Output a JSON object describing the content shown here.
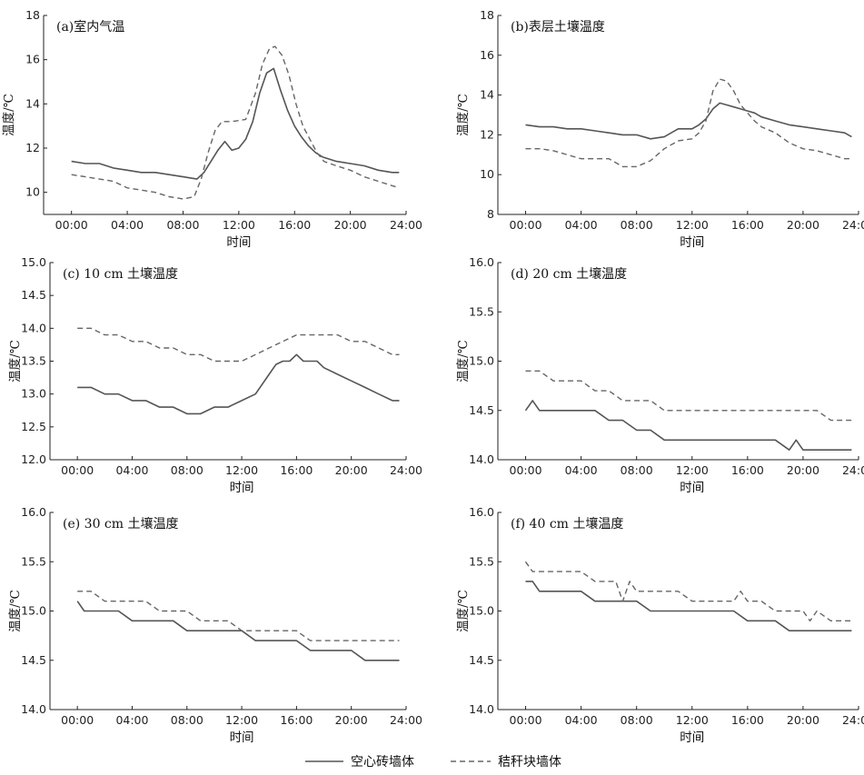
{
  "x_ticks": [
    "00:00",
    "04:00",
    "08:00",
    "12:00",
    "16:00",
    "20:00",
    "24:00"
  ],
  "legend": {
    "hollow_brick": "空心砖墙体",
    "straw_block": "秸秆块墙体"
  },
  "colors": {
    "hollow_brick": "#555555",
    "straw_block": "#666666",
    "axis": "#222222"
  },
  "chart_data": [
    {
      "type": "line",
      "title": "(a)室内气温",
      "xlabel": "时间",
      "ylabel": "温度/℃",
      "xlim": [
        -2,
        24
      ],
      "ylim": [
        9,
        18
      ],
      "yticks": [
        "10",
        "12",
        "14",
        "16",
        "18"
      ],
      "ytick_values": [
        10,
        12,
        14,
        16,
        18
      ],
      "grid": false,
      "series": [
        {
          "name": "空心砖墙体",
          "x": [
            0,
            1,
            2,
            3,
            4,
            5,
            6,
            7,
            8,
            9,
            9.5,
            10,
            10.5,
            11,
            11.5,
            12,
            12.5,
            13,
            13.5,
            14,
            14.5,
            15,
            15.5,
            16,
            16.5,
            17,
            17.5,
            18,
            19,
            20,
            21,
            22,
            23,
            23.5
          ],
          "y": [
            11.4,
            11.3,
            11.3,
            11.1,
            11.0,
            10.9,
            10.9,
            10.8,
            10.7,
            10.6,
            10.9,
            11.4,
            11.9,
            12.3,
            11.9,
            12.0,
            12.4,
            13.2,
            14.5,
            15.4,
            15.6,
            14.6,
            13.7,
            13.0,
            12.5,
            12.1,
            11.8,
            11.6,
            11.4,
            11.3,
            11.2,
            11.0,
            10.9,
            10.9
          ]
        },
        {
          "name": "秸秆块墙体",
          "x": [
            0,
            1,
            2,
            3,
            4,
            5,
            6,
            7,
            8,
            8.8,
            9.3,
            9.8,
            10.3,
            10.8,
            11.5,
            12.5,
            13.2,
            13.7,
            14.2,
            14.6,
            15.1,
            15.6,
            16.1,
            16.6,
            17.1,
            17.6,
            18.1,
            19,
            20,
            21,
            22,
            23,
            23.5
          ],
          "y": [
            10.8,
            10.7,
            10.6,
            10.5,
            10.2,
            10.1,
            10.0,
            9.8,
            9.7,
            9.8,
            10.6,
            11.8,
            12.8,
            13.2,
            13.2,
            13.3,
            14.5,
            15.8,
            16.5,
            16.6,
            16.2,
            15.3,
            14.0,
            13.0,
            12.4,
            11.8,
            11.4,
            11.2,
            11.0,
            10.7,
            10.5,
            10.3,
            10.2
          ]
        }
      ]
    },
    {
      "type": "line",
      "title": "(b)表层土壤温度",
      "xlabel": "时间",
      "ylabel": "温度/℃",
      "xlim": [
        -2,
        24
      ],
      "ylim": [
        8,
        18
      ],
      "yticks": [
        "8",
        "10",
        "12",
        "14",
        "16",
        "18"
      ],
      "ytick_values": [
        8,
        10,
        12,
        14,
        16,
        18
      ],
      "grid": false,
      "series": [
        {
          "name": "空心砖墙体",
          "x": [
            0,
            1,
            2,
            3,
            4,
            5,
            6,
            7,
            8,
            9,
            10,
            11,
            12,
            12.5,
            13,
            13.5,
            14,
            14.5,
            15,
            15.5,
            16,
            16.5,
            17,
            18,
            19,
            20,
            21,
            22,
            23,
            23.5
          ],
          "y": [
            12.5,
            12.4,
            12.4,
            12.3,
            12.3,
            12.2,
            12.1,
            12.0,
            12.0,
            11.8,
            11.9,
            12.3,
            12.3,
            12.5,
            12.8,
            13.3,
            13.6,
            13.5,
            13.4,
            13.3,
            13.2,
            13.1,
            12.9,
            12.7,
            12.5,
            12.4,
            12.3,
            12.2,
            12.1,
            11.9
          ]
        },
        {
          "name": "秸秆块墙体",
          "x": [
            0,
            1,
            2,
            3,
            4,
            5,
            6,
            7,
            8,
            9,
            10,
            11,
            12,
            12.5,
            13,
            13.5,
            14,
            14.5,
            15,
            15.5,
            16,
            16.5,
            17,
            18,
            19,
            20,
            21,
            22,
            23,
            23.5
          ],
          "y": [
            11.3,
            11.3,
            11.2,
            11.0,
            10.8,
            10.8,
            10.8,
            10.4,
            10.4,
            10.7,
            11.3,
            11.7,
            11.8,
            12.1,
            12.7,
            14.2,
            14.8,
            14.7,
            14.2,
            13.5,
            13.1,
            12.7,
            12.4,
            12.1,
            11.6,
            11.3,
            11.2,
            11.0,
            10.8,
            10.8
          ]
        }
      ]
    },
    {
      "type": "line",
      "title": "(c) 10 cm 土壤温度",
      "xlabel": "时间",
      "ylabel": "温度/℃",
      "xlim": [
        -2,
        24
      ],
      "ylim": [
        12.0,
        15.0
      ],
      "yticks": [
        "12.0",
        "12.5",
        "13.0",
        "13.5",
        "14.0",
        "14.5",
        "15.0"
      ],
      "ytick_values": [
        12.0,
        12.5,
        13.0,
        13.5,
        14.0,
        14.5,
        15.0
      ],
      "grid": false,
      "series": [
        {
          "name": "空心砖墙体",
          "x": [
            0,
            1,
            2,
            3,
            4,
            5,
            6,
            7,
            8,
            9,
            10,
            11,
            12,
            13,
            14,
            14.5,
            15,
            15.5,
            16,
            16.5,
            17,
            17.5,
            18,
            19,
            20,
            21,
            22,
            23,
            23.5
          ],
          "y": [
            13.1,
            13.1,
            13.0,
            13.0,
            12.9,
            12.9,
            12.8,
            12.8,
            12.7,
            12.7,
            12.8,
            12.8,
            12.9,
            13.0,
            13.3,
            13.45,
            13.5,
            13.5,
            13.6,
            13.5,
            13.5,
            13.5,
            13.4,
            13.3,
            13.2,
            13.1,
            13.0,
            12.9,
            12.9
          ]
        },
        {
          "name": "秸秆块墙体",
          "x": [
            0,
            1,
            2,
            3,
            4,
            5,
            6,
            7,
            8,
            9,
            10,
            11,
            12,
            13,
            14,
            15,
            16,
            17,
            18,
            19,
            20,
            21,
            22,
            23,
            23.5
          ],
          "y": [
            14.0,
            14.0,
            13.9,
            13.9,
            13.8,
            13.8,
            13.7,
            13.7,
            13.6,
            13.6,
            13.5,
            13.5,
            13.5,
            13.6,
            13.7,
            13.8,
            13.9,
            13.9,
            13.9,
            13.9,
            13.8,
            13.8,
            13.7,
            13.6,
            13.6
          ]
        }
      ]
    },
    {
      "type": "line",
      "title": "(d) 20 cm 土壤温度",
      "xlabel": "时间",
      "ylabel": "温度/℃",
      "xlim": [
        -2,
        24
      ],
      "ylim": [
        14.0,
        16.0
      ],
      "yticks": [
        "14.0",
        "14.5",
        "15.0",
        "15.5",
        "16.0"
      ],
      "ytick_values": [
        14.0,
        14.5,
        15.0,
        15.5,
        16.0
      ],
      "grid": false,
      "series": [
        {
          "name": "空心砖墙体",
          "x": [
            0,
            0.5,
            1,
            2,
            3,
            4,
            5,
            6,
            7,
            8,
            9,
            10,
            11,
            12,
            13,
            14,
            15,
            16,
            17,
            18,
            19,
            19.5,
            20,
            21,
            22,
            23,
            23.5
          ],
          "y": [
            14.5,
            14.6,
            14.5,
            14.5,
            14.5,
            14.5,
            14.5,
            14.4,
            14.4,
            14.3,
            14.3,
            14.2,
            14.2,
            14.2,
            14.2,
            14.2,
            14.2,
            14.2,
            14.2,
            14.2,
            14.1,
            14.2,
            14.1,
            14.1,
            14.1,
            14.1,
            14.1
          ]
        },
        {
          "name": "秸秆块墙体",
          "x": [
            0,
            1,
            2,
            3,
            4,
            5,
            6,
            7,
            8,
            9,
            10,
            11,
            12,
            13,
            14,
            15,
            16,
            17,
            18,
            19,
            20,
            21,
            22,
            23,
            23.5
          ],
          "y": [
            14.9,
            14.9,
            14.8,
            14.8,
            14.8,
            14.7,
            14.7,
            14.6,
            14.6,
            14.6,
            14.5,
            14.5,
            14.5,
            14.5,
            14.5,
            14.5,
            14.5,
            14.5,
            14.5,
            14.5,
            14.5,
            14.5,
            14.4,
            14.4,
            14.4
          ]
        }
      ]
    },
    {
      "type": "line",
      "title": "(e) 30 cm 土壤温度",
      "xlabel": "时间",
      "ylabel": "温度/℃",
      "xlim": [
        -2,
        24
      ],
      "ylim": [
        14.0,
        16.0
      ],
      "yticks": [
        "14.0",
        "14.5",
        "15.0",
        "15.5",
        "16.0"
      ],
      "ytick_values": [
        14.0,
        14.5,
        15.0,
        15.5,
        16.0
      ],
      "grid": false,
      "series": [
        {
          "name": "空心砖墙体",
          "x": [
            0,
            0.5,
            1,
            2,
            3,
            4,
            5,
            6,
            7,
            8,
            9,
            10,
            11,
            12,
            13,
            14,
            15,
            16,
            17,
            18,
            19,
            20,
            21,
            22,
            23,
            23.5
          ],
          "y": [
            15.1,
            15.0,
            15.0,
            15.0,
            15.0,
            14.9,
            14.9,
            14.9,
            14.9,
            14.8,
            14.8,
            14.8,
            14.8,
            14.8,
            14.7,
            14.7,
            14.7,
            14.7,
            14.6,
            14.6,
            14.6,
            14.6,
            14.5,
            14.5,
            14.5,
            14.5
          ]
        },
        {
          "name": "秸秆块墙体",
          "x": [
            0,
            1,
            2,
            3,
            4,
            5,
            6,
            7,
            8,
            9,
            10,
            11,
            12,
            13,
            14,
            15,
            16,
            17,
            18,
            19,
            20,
            21,
            22,
            23,
            23.5
          ],
          "y": [
            15.2,
            15.2,
            15.1,
            15.1,
            15.1,
            15.1,
            15.0,
            15.0,
            15.0,
            14.9,
            14.9,
            14.9,
            14.8,
            14.8,
            14.8,
            14.8,
            14.8,
            14.7,
            14.7,
            14.7,
            14.7,
            14.7,
            14.7,
            14.7,
            14.7
          ]
        }
      ]
    },
    {
      "type": "line",
      "title": "(f) 40 cm 土壤温度",
      "xlabel": "时间",
      "ylabel": "温度/℃",
      "xlim": [
        -2,
        24
      ],
      "ylim": [
        14.0,
        16.0
      ],
      "yticks": [
        "14.0",
        "14.5",
        "15.0",
        "15.5",
        "16.0"
      ],
      "ytick_values": [
        14.0,
        14.5,
        15.0,
        15.5,
        16.0
      ],
      "grid": false,
      "series": [
        {
          "name": "空心砖墙体",
          "x": [
            0,
            0.5,
            1,
            2,
            3,
            4,
            5,
            6,
            7,
            8,
            9,
            10,
            11,
            12,
            13,
            14,
            15,
            16,
            17,
            18,
            19,
            20,
            21,
            22,
            23,
            23.5
          ],
          "y": [
            15.3,
            15.3,
            15.2,
            15.2,
            15.2,
            15.2,
            15.1,
            15.1,
            15.1,
            15.1,
            15.0,
            15.0,
            15.0,
            15.0,
            15.0,
            15.0,
            15.0,
            14.9,
            14.9,
            14.9,
            14.8,
            14.8,
            14.8,
            14.8,
            14.8,
            14.8
          ]
        },
        {
          "name": "秸秆块墙体",
          "x": [
            0,
            0.5,
            1,
            2,
            3,
            4,
            5,
            6,
            6.5,
            7,
            7.5,
            8,
            9,
            10,
            11,
            12,
            13,
            14,
            15,
            15.5,
            16,
            17,
            18,
            19,
            20,
            20.5,
            21,
            22,
            23,
            23.5
          ],
          "y": [
            15.5,
            15.4,
            15.4,
            15.4,
            15.4,
            15.4,
            15.3,
            15.3,
            15.3,
            15.1,
            15.3,
            15.2,
            15.2,
            15.2,
            15.2,
            15.1,
            15.1,
            15.1,
            15.1,
            15.2,
            15.1,
            15.1,
            15.0,
            15.0,
            15.0,
            14.9,
            15.0,
            14.9,
            14.9,
            14.9
          ]
        }
      ]
    }
  ]
}
